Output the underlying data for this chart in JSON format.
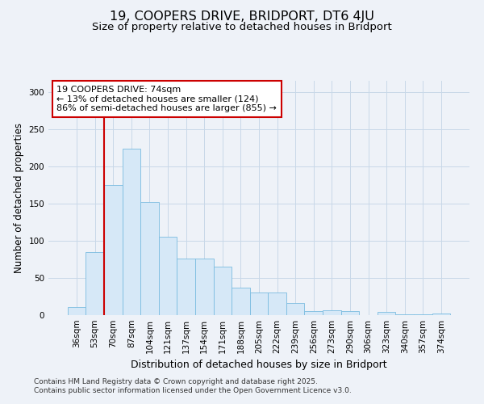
{
  "title": "19, COOPERS DRIVE, BRIDPORT, DT6 4JU",
  "subtitle": "Size of property relative to detached houses in Bridport",
  "xlabel": "Distribution of detached houses by size in Bridport",
  "ylabel": "Number of detached properties",
  "categories": [
    "36sqm",
    "53sqm",
    "70sqm",
    "87sqm",
    "104sqm",
    "121sqm",
    "137sqm",
    "154sqm",
    "171sqm",
    "188sqm",
    "205sqm",
    "222sqm",
    "239sqm",
    "256sqm",
    "273sqm",
    "290sqm",
    "306sqm",
    "323sqm",
    "340sqm",
    "357sqm",
    "374sqm"
  ],
  "values": [
    11,
    85,
    175,
    224,
    152,
    105,
    76,
    76,
    65,
    37,
    30,
    30,
    16,
    5,
    7,
    5,
    0,
    4,
    1,
    1,
    2
  ],
  "bar_color": "#d6e8f7",
  "bar_edge_color": "#7bbce0",
  "vline_index": 2,
  "annotation_title": "19 COOPERS DRIVE: 74sqm",
  "annotation_line1": "← 13% of detached houses are smaller (124)",
  "annotation_line2": "86% of semi-detached houses are larger (855) →",
  "annotation_box_facecolor": "#ffffff",
  "annotation_box_edgecolor": "#cc0000",
  "vline_color": "#cc0000",
  "ylim": [
    0,
    315
  ],
  "yticks": [
    0,
    50,
    100,
    150,
    200,
    250,
    300
  ],
  "grid_color": "#c8d8e8",
  "background_color": "#eef2f8",
  "footer_line1": "Contains HM Land Registry data © Crown copyright and database right 2025.",
  "footer_line2": "Contains public sector information licensed under the Open Government Licence v3.0.",
  "title_fontsize": 11.5,
  "subtitle_fontsize": 9.5,
  "xlabel_fontsize": 9,
  "ylabel_fontsize": 8.5,
  "tick_fontsize": 7.5,
  "annotation_fontsize": 8,
  "footer_fontsize": 6.5
}
